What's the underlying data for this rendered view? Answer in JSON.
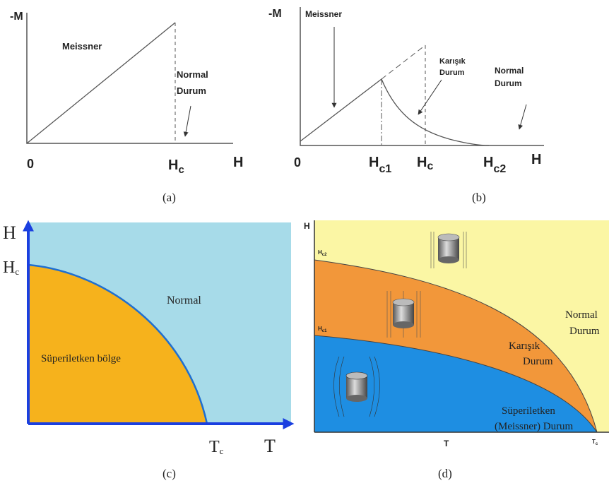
{
  "panels": [
    {
      "caption": "(a)",
      "y_axis": "-M",
      "x_axis": "H",
      "origin": "0",
      "ticks": [
        {
          "main": "H",
          "sub": "c"
        }
      ],
      "labels": [
        "Meissner",
        "Normal",
        "Durum"
      ]
    },
    {
      "caption": "(b)",
      "y_axis": "-M",
      "x_axis": "H",
      "origin": "0",
      "ticks": [
        {
          "main": "H",
          "sub": "c1"
        },
        {
          "main": "H",
          "sub": "c"
        },
        {
          "main": "H",
          "sub": "c2"
        }
      ],
      "labels": [
        "Meissner",
        "Karışık",
        "Durum",
        "Normal",
        "Durum"
      ]
    },
    {
      "caption": "(c)",
      "y_axis": "H",
      "x_axis": "T",
      "y_tick": {
        "main": "H",
        "sub": "c"
      },
      "x_tick": {
        "main": "T",
        "sub": "c"
      },
      "labels": [
        "Normal",
        "Süperiletken bölge"
      ]
    },
    {
      "caption": "(d)",
      "y_axis": "H",
      "x_axis": "T",
      "y_ticks": [
        {
          "main": "H",
          "sub": "c2"
        },
        {
          "main": "H",
          "sub": "c1"
        }
      ],
      "x_tick": {
        "main": "T",
        "sub": "c"
      },
      "labels": [
        "Normal",
        "Durum",
        "Karışık",
        "Durum",
        "Süperiletken",
        "(Meissner) Durum"
      ]
    }
  ]
}
